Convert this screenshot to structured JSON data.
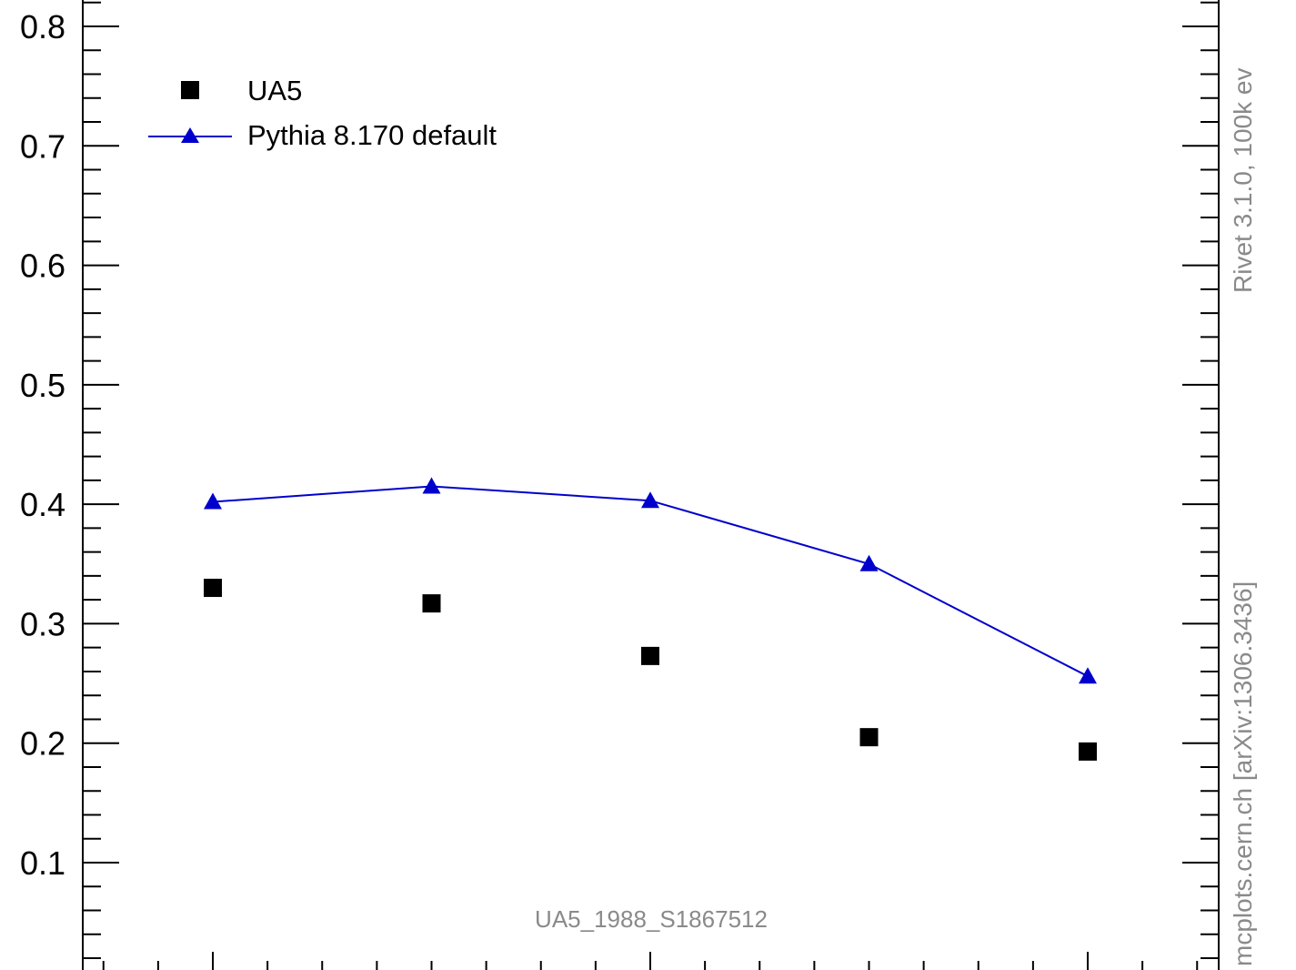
{
  "chart_data": {
    "type": "scatter",
    "title": "",
    "xlabel": "",
    "ylabel": "",
    "ylim": [
      0.0,
      0.83
    ],
    "xlim": [
      0.2,
      6.2
    ],
    "y_ticks": [
      "0.1",
      "0.2",
      "0.3",
      "0.4",
      "0.5",
      "0.6",
      "0.7",
      "0.8"
    ],
    "bottom_partial_tick": "0",
    "grid": false,
    "legend_position": "top-left",
    "series": [
      {
        "name": "UA5",
        "style": "markers",
        "marker": "square",
        "color": "#000000",
        "x": [
          1,
          2,
          3,
          4,
          5
        ],
        "values": [
          0.33,
          0.317,
          0.273,
          0.205,
          0.193
        ]
      },
      {
        "name": "Pythia 8.170 default",
        "style": "line+markers",
        "marker": "triangle",
        "color": "#0000cc",
        "x": [
          1,
          2,
          3,
          4,
          5
        ],
        "values": [
          0.402,
          0.415,
          0.403,
          0.35,
          0.256
        ]
      }
    ],
    "annotations": {
      "analysis_id": "UA5_1988_S1867512",
      "rivet_label": "Rivet 3.1.0,  100k ev",
      "mcplots_label": "mcplots.cern.ch [arXiv:1306.3436]"
    }
  }
}
